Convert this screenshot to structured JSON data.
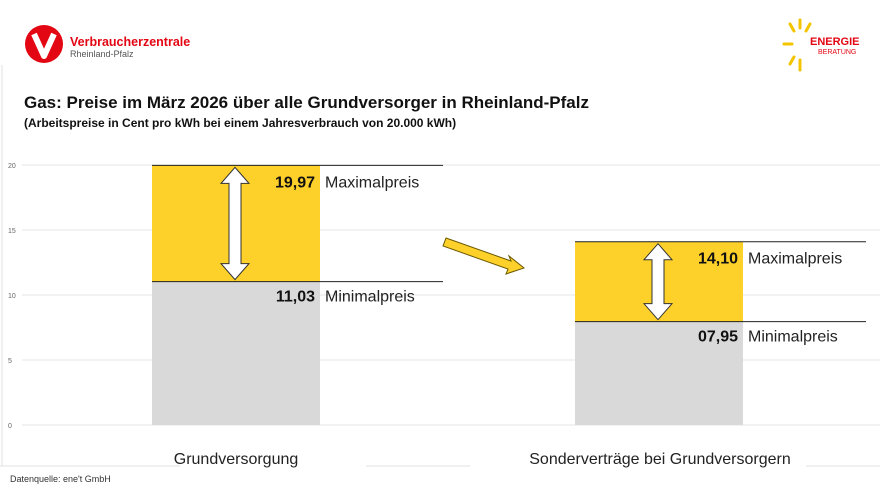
{
  "logo_left": {
    "name": "Verbraucherzentrale",
    "region": "Rheinland-Pfalz",
    "color": "#e30613"
  },
  "logo_right": {
    "line1": "ENERGIE",
    "line2": "BERATUNG",
    "ray_color": "#f5c400",
    "text_color": "#e30613"
  },
  "source": "Datenquelle: ene't GmbH",
  "chart_data": {
    "type": "bar",
    "title": "Gas: Preise im März 2026 über alle Grundversorger in Rheinland-Pfalz",
    "subtitle": "(Arbeitspreise in Cent pro kWh bei einem Jahresverbrauch von 20.000 kWh)",
    "categories": [
      "Grundversorgung",
      "Sonderverträge bei Grundversorgern"
    ],
    "series": [
      {
        "name": "Minimalpreis",
        "values": [
          11.03,
          7.95
        ],
        "labels": [
          "11,03",
          "07,95"
        ],
        "color": "#d9d9d9"
      },
      {
        "name": "Maximalpreis",
        "values": [
          19.97,
          14.1
        ],
        "labels": [
          "19,97",
          "14,10"
        ],
        "color": "#fdd02a"
      }
    ],
    "ylim": [
      0,
      20
    ],
    "yticks": [
      0,
      5,
      10,
      15,
      20
    ],
    "grid": true
  }
}
